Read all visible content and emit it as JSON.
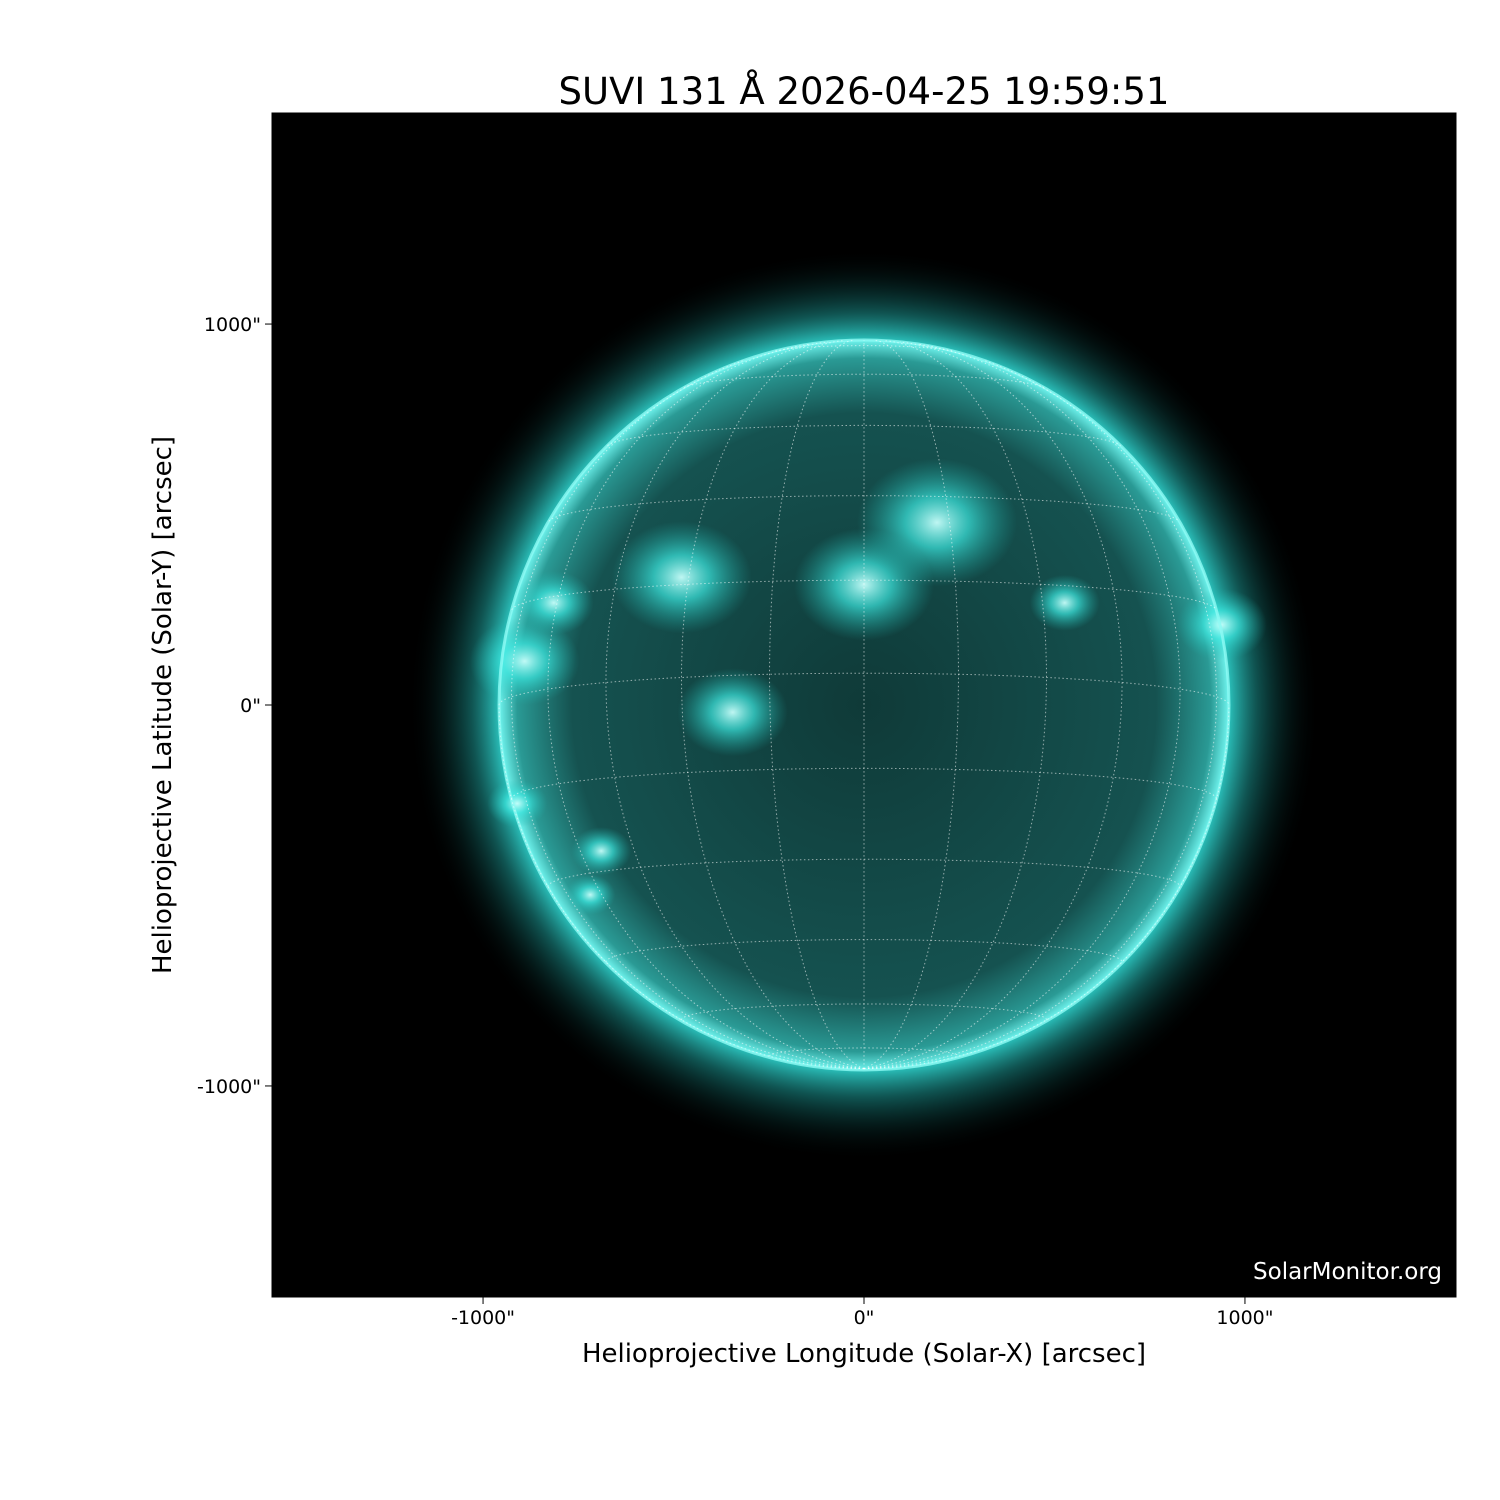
{
  "chart_data": {
    "type": "heatmap",
    "title": "SUVI 131 Å 2026-04-25 19:59:51",
    "xlabel": "Helioprojective Longitude (Solar-X) [arcsec]",
    "ylabel": "Helioprojective Latitude (Solar-Y) [arcsec]",
    "xlim": [
      -1554,
      1554
    ],
    "ylim": [
      -1554,
      1554
    ],
    "xticks": [
      {
        "value": -1000,
        "label": "-1000\""
      },
      {
        "value": 0,
        "label": "0\""
      },
      {
        "value": 1000,
        "label": "1000\""
      }
    ],
    "yticks": [
      {
        "value": 1000,
        "label": "1000\""
      },
      {
        "value": 0,
        "label": "0\""
      },
      {
        "value": -1000,
        "label": "-1000\""
      }
    ],
    "solar_radius_arcsec": 958,
    "grid_spacing_deg": 15,
    "colormap_color": "#2ee8e0",
    "background_color": "#000000"
  },
  "watermark": "SolarMonitor.org"
}
